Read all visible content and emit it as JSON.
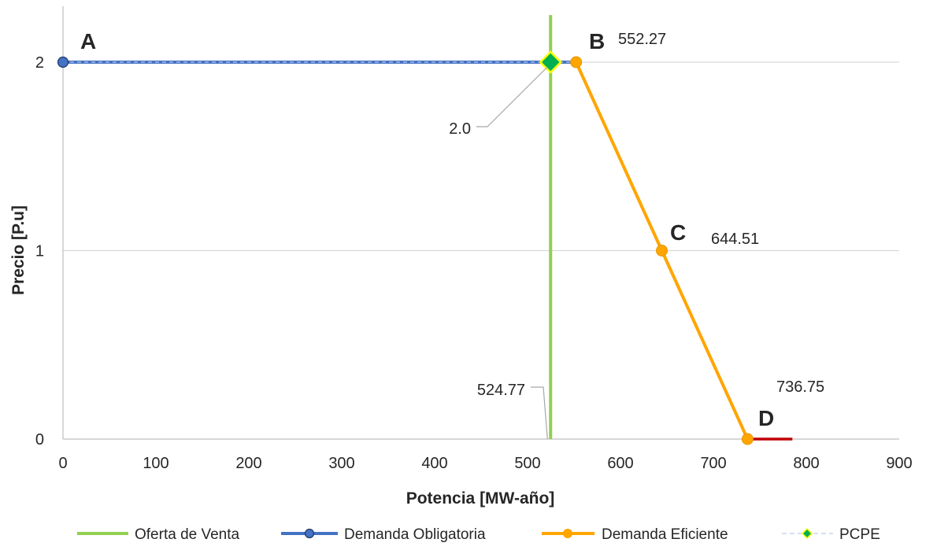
{
  "chart_data": {
    "type": "line",
    "xlabel": "Potencia  [MW-año]",
    "ylabel": "Precio  [P.u]",
    "xlim": [
      0,
      900
    ],
    "ylim": [
      0,
      2.25
    ],
    "x_ticks": [
      "0",
      "100",
      "200",
      "300",
      "400",
      "500",
      "600",
      "700",
      "800",
      "900"
    ],
    "y_ticks": [
      "0",
      "1",
      "2"
    ],
    "grid": "horizontal",
    "legend_position": "bottom",
    "series": [
      {
        "name": "Oferta de Venta",
        "color": "#92d050",
        "points": [
          [
            524.77,
            0
          ],
          [
            524.77,
            2.25
          ]
        ]
      },
      {
        "name": "Demanda Obligatoria",
        "color": "#4472c4",
        "points": [
          [
            0,
            2
          ],
          [
            552.27,
            2
          ]
        ]
      },
      {
        "name": "Demanda Eficiente",
        "color": "#ffa500",
        "points": [
          [
            552.27,
            2
          ],
          [
            644.51,
            1
          ],
          [
            736.75,
            0
          ]
        ]
      },
      {
        "name": "PCPE",
        "color": "#00b050",
        "points": [
          [
            524.77,
            2
          ]
        ]
      }
    ],
    "extra_segment": {
      "color": "#c00000",
      "points": [
        [
          736.75,
          0
        ],
        [
          785,
          0
        ]
      ]
    },
    "point_labels": [
      {
        "text": "A",
        "x": 0,
        "y": 2
      },
      {
        "text": "B",
        "x": 552.27,
        "y": 2
      },
      {
        "text": "C",
        "x": 644.51,
        "y": 1
      },
      {
        "text": "D",
        "x": 736.75,
        "y": 0
      }
    ],
    "data_labels": [
      {
        "text": "552.27"
      },
      {
        "text": "644.51"
      },
      {
        "text": "736.75"
      },
      {
        "text": "2.0"
      },
      {
        "text": "524.77"
      }
    ]
  }
}
